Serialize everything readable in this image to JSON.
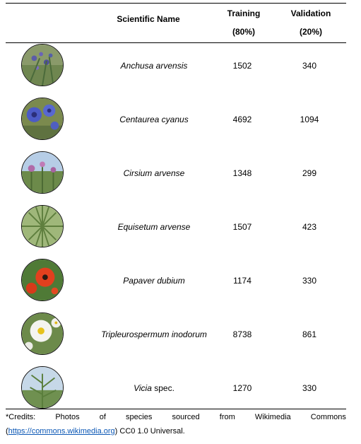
{
  "table": {
    "headers": {
      "scientific_name": "Scientific Name",
      "training_title": "Training",
      "training_pct": "(80%)",
      "validation_title": "Validation",
      "validation_pct": "(20%)"
    },
    "rows": [
      {
        "name": "Anchusa arvensis",
        "training": "1502",
        "validation": "340",
        "photo_icon": "anchusa-photo-icon"
      },
      {
        "name": "Centaurea cyanus",
        "training": "4692",
        "validation": "1094",
        "photo_icon": "cornflower-photo-icon"
      },
      {
        "name": "Cirsium arvense",
        "training": "1348",
        "validation": "299",
        "photo_icon": "thistle-photo-icon"
      },
      {
        "name": "Equisetum arvense",
        "training": "1507",
        "validation": "423",
        "photo_icon": "horsetail-photo-icon"
      },
      {
        "name": "Papaver dubium",
        "training": "1174",
        "validation": "330",
        "photo_icon": "poppy-photo-icon"
      },
      {
        "name": "Tripleurospermum inodorum",
        "training": "8738",
        "validation": "861",
        "photo_icon": "mayweed-photo-icon"
      },
      {
        "name_italic": "Vicia",
        "name_plain": " spec.",
        "training": "1270",
        "validation": "330",
        "photo_icon": "vetch-photo-icon"
      }
    ]
  },
  "credits": {
    "words": [
      "*Credits:",
      "Photos",
      "of",
      "species",
      "sourced",
      "from",
      "Wikimedia",
      "Commons"
    ],
    "open_paren": "(",
    "link_text": "https://commons.wikimedia.org",
    "tail": ") CC0 1.0 Universal."
  },
  "colors": {
    "link": "#0b57b5",
    "rule": "#000000"
  }
}
